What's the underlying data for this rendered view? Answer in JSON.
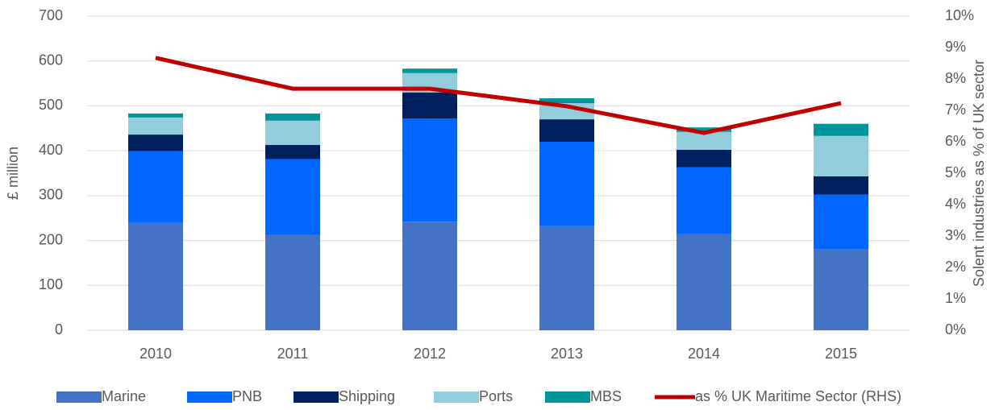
{
  "chart_data": {
    "type": "bar",
    "stacked": true,
    "y_axis_label": "£ million",
    "y2_axis_label": "Solent industries as % of UK sector",
    "categories": [
      "2010",
      "2011",
      "2012",
      "2013",
      "2014",
      "2015"
    ],
    "series": [
      {
        "name": "Marine",
        "color": "#4472c4",
        "values": [
          239,
          212,
          242,
          232,
          214,
          180
        ]
      },
      {
        "name": "PNB",
        "color": "#0066ff",
        "values": [
          160,
          169,
          230,
          188,
          149,
          122
        ]
      },
      {
        "name": "Shipping",
        "color": "#002060",
        "values": [
          37,
          32,
          58,
          50,
          39,
          41
        ]
      },
      {
        "name": "Ports",
        "color": "#92cddc",
        "values": [
          38,
          54,
          43,
          36,
          40,
          90
        ]
      },
      {
        "name": "MBS",
        "color": "#00959a",
        "values": [
          9,
          16,
          10,
          11,
          10,
          27
        ]
      },
      {
        "name": "as % UK Maritime Sector (RHS)",
        "color": "#c00000",
        "type": "line",
        "axis": "y2",
        "values": [
          8.67,
          7.69,
          7.69,
          7.13,
          6.28,
          7.23
        ]
      }
    ],
    "ylim": [
      0,
      700
    ],
    "yticks": [
      0,
      100,
      200,
      300,
      400,
      500,
      600,
      700
    ],
    "y2lim": [
      0,
      10
    ],
    "y2ticks": [
      {
        "value": 0,
        "label": "0%"
      },
      {
        "value": 1,
        "label": "1%"
      },
      {
        "value": 2,
        "label": "2%"
      },
      {
        "value": 3,
        "label": "3%"
      },
      {
        "value": 4,
        "label": "4%"
      },
      {
        "value": 5,
        "label": "5%"
      },
      {
        "value": 6,
        "label": "6%"
      },
      {
        "value": 7,
        "label": "7%"
      },
      {
        "value": 8,
        "label": "8%"
      },
      {
        "value": 9,
        "label": "9%"
      },
      {
        "value": 10,
        "label": "10%"
      }
    ],
    "grid": true,
    "legend": "bottom"
  }
}
